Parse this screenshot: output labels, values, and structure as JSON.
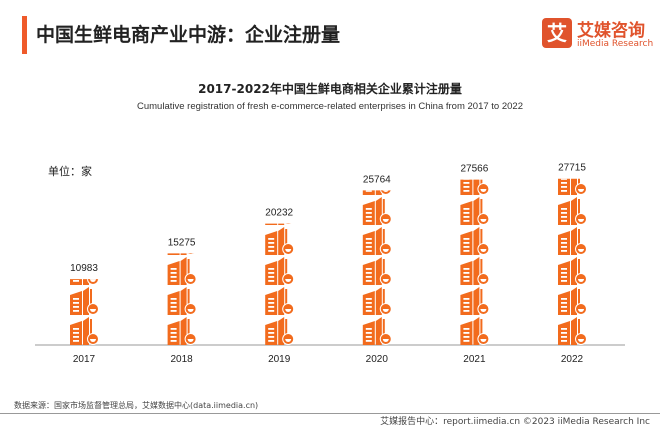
{
  "header": {
    "title": "中国生鲜电商产业中游：企业注册量"
  },
  "logo": {
    "mark": "艾",
    "cn": "艾媒咨询",
    "en": "iiMedia Research"
  },
  "colors": {
    "accent": "#ef5a2a",
    "icon": "#f26b1d",
    "axis": "#bbbbbb"
  },
  "chart_data": {
    "type": "bar",
    "style": "pictogram",
    "icon": "building-with-badge-icon",
    "title": "2017-2022年中国生鲜电商相关企业累计注册量",
    "subtitle": "Cumulative registration of fresh e-commerce-related enterprises in China from 2017 to 2022",
    "unit_label": "单位：家",
    "categories": [
      "2017",
      "2018",
      "2019",
      "2020",
      "2021",
      "2022"
    ],
    "values": [
      10983,
      15275,
      20232,
      25764,
      27566,
      27715
    ],
    "data_labels": [
      "10983",
      "15275",
      "20232",
      "25764",
      "27566",
      "27715"
    ],
    "grid": false
  },
  "footer": {
    "source": "数据来源：国家市场监督管理总局，艾媒数据中心(data.iimedia.cn)",
    "credit": "艾媒报告中心：report.iimedia.cn  ©2023  iiMedia Research Inc"
  }
}
